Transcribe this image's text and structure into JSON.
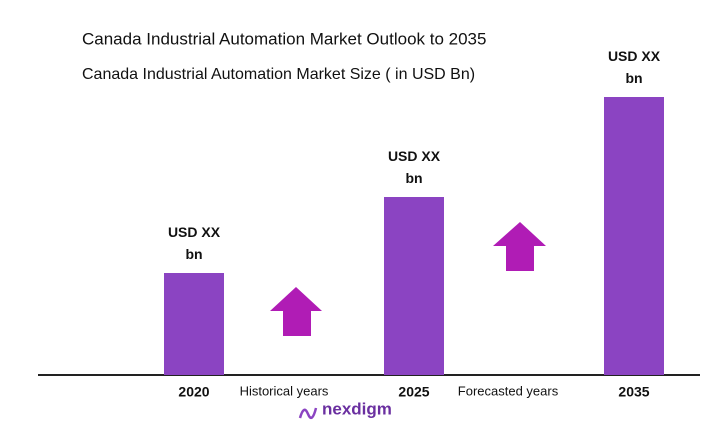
{
  "chart_data": {
    "type": "bar",
    "title": "Canada Industrial Automation  Market Outlook to 2035",
    "subtitle": "Canada Industrial Automation Market Size  ( in USD Bn)",
    "categories": [
      "2020",
      "2025",
      "2035"
    ],
    "values": [
      102,
      178,
      278
    ],
    "value_labels": [
      "USD XX bn",
      "USD XX bn",
      "USD XX bn"
    ],
    "color": "#8b44c2",
    "ylim": [
      0,
      300
    ],
    "annotations": [
      "Historical years",
      "Forecasted years"
    ],
    "logo": "nexdigm"
  }
}
